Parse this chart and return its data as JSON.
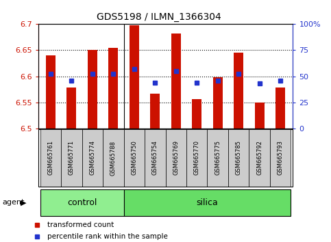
{
  "title": "GDS5198 / ILMN_1366304",
  "samples": [
    "GSM665761",
    "GSM665771",
    "GSM665774",
    "GSM665788",
    "GSM665750",
    "GSM665754",
    "GSM665769",
    "GSM665770",
    "GSM665775",
    "GSM665785",
    "GSM665792",
    "GSM665793"
  ],
  "red_values": [
    6.64,
    6.578,
    6.651,
    6.655,
    6.698,
    6.567,
    6.682,
    6.556,
    6.598,
    6.645,
    6.55,
    6.578
  ],
  "blue_pct": [
    52,
    46,
    52,
    52,
    57,
    44,
    55,
    44,
    46,
    52,
    43,
    46
  ],
  "ylim_left": [
    6.5,
    6.7
  ],
  "ylim_right": [
    0,
    100
  ],
  "yticks_left": [
    6.5,
    6.55,
    6.6,
    6.65,
    6.7
  ],
  "yticks_right": [
    0,
    25,
    50,
    75,
    100
  ],
  "ytick_labels_left": [
    "6.5",
    "6.55",
    "6.6",
    "6.65",
    "6.7"
  ],
  "ytick_labels_right": [
    "0",
    "25",
    "50",
    "75",
    "100%"
  ],
  "control_count": 4,
  "silica_count": 8,
  "control_label": "control",
  "silica_label": "silica",
  "agent_label": "agent",
  "legend_red": "transformed count",
  "legend_blue": "percentile rank within the sample",
  "bar_color": "#cc1100",
  "dot_color": "#2233cc",
  "control_bg": "#90ee90",
  "silica_bg": "#66dd66",
  "bar_bottom": 6.5,
  "tick_label_bg": "#cccccc",
  "bar_width": 0.45,
  "dot_size": 5
}
